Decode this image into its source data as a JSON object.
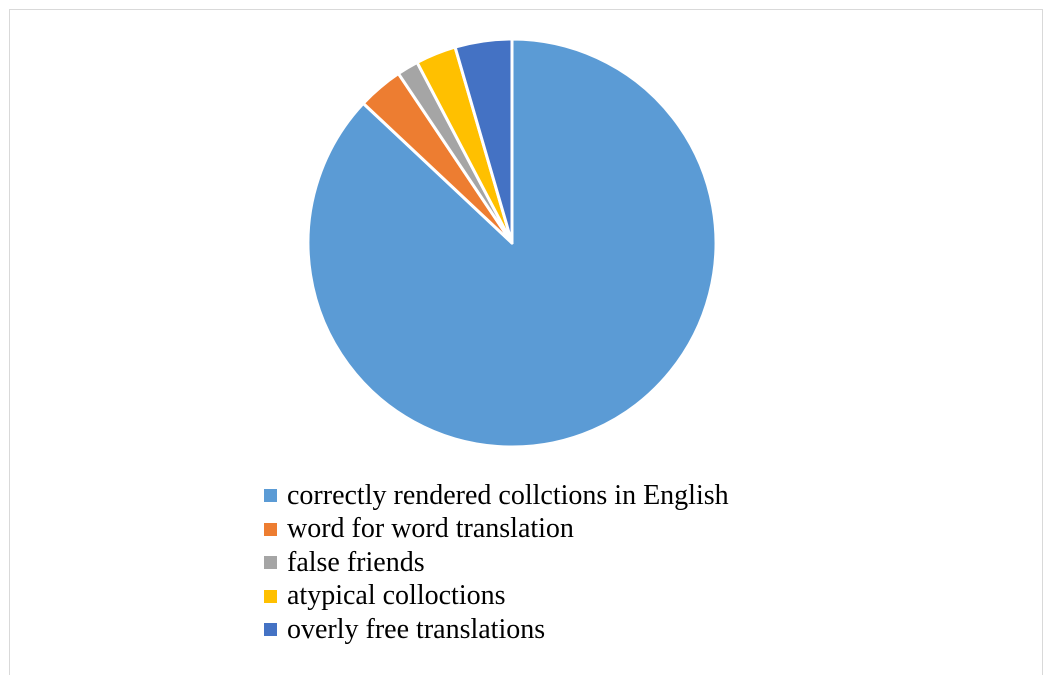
{
  "chart_data": {
    "type": "pie",
    "title": "",
    "slices": [
      {
        "label": "correctly rendered collctions in English",
        "value": 87.0,
        "color": "#5b9bd5"
      },
      {
        "label": "word for word translation",
        "value": 3.6,
        "color": "#ed7d31"
      },
      {
        "label": "false friends",
        "value": 1.7,
        "color": "#a5a5a5"
      },
      {
        "label": "atypical colloctions",
        "value": 3.2,
        "color": "#ffc000"
      },
      {
        "label": "overly free translations",
        "value": 4.5,
        "color": "#4472c4"
      }
    ],
    "start_angle_deg": 0,
    "direction": "clockwise",
    "legend_position": "bottom"
  }
}
